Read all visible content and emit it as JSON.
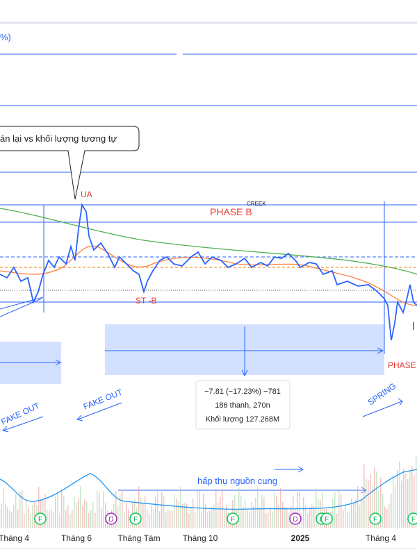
{
  "header": {
    "percent_fragment": "%)"
  },
  "annotations": {
    "callout": "án lại vs khối lượng tương tự",
    "ua": "UA",
    "phase_b": "PHASE B",
    "creek": "CREEK",
    "st_b": "ST -B",
    "phase_right": "PHASE",
    "spring": "SPRING",
    "fake_out_1": "FAKE OUT",
    "fake_out_2": "FAKE OUT",
    "absorption": "hấp thụ nguồn cung"
  },
  "measure_tooltip": {
    "line1": "−7.81 (−17.23%) −781",
    "line2": "186 thanh, 270n",
    "line3": "Khối lượng 127.268M"
  },
  "time_axis": [
    "Tháng 4",
    "Tháng 6",
    "Tháng Tám",
    "Tháng 10",
    "2025",
    "Tháng 4"
  ],
  "events": [
    "F",
    "D",
    "F",
    "F",
    "D",
    "F",
    "F",
    "F",
    "F"
  ]
}
